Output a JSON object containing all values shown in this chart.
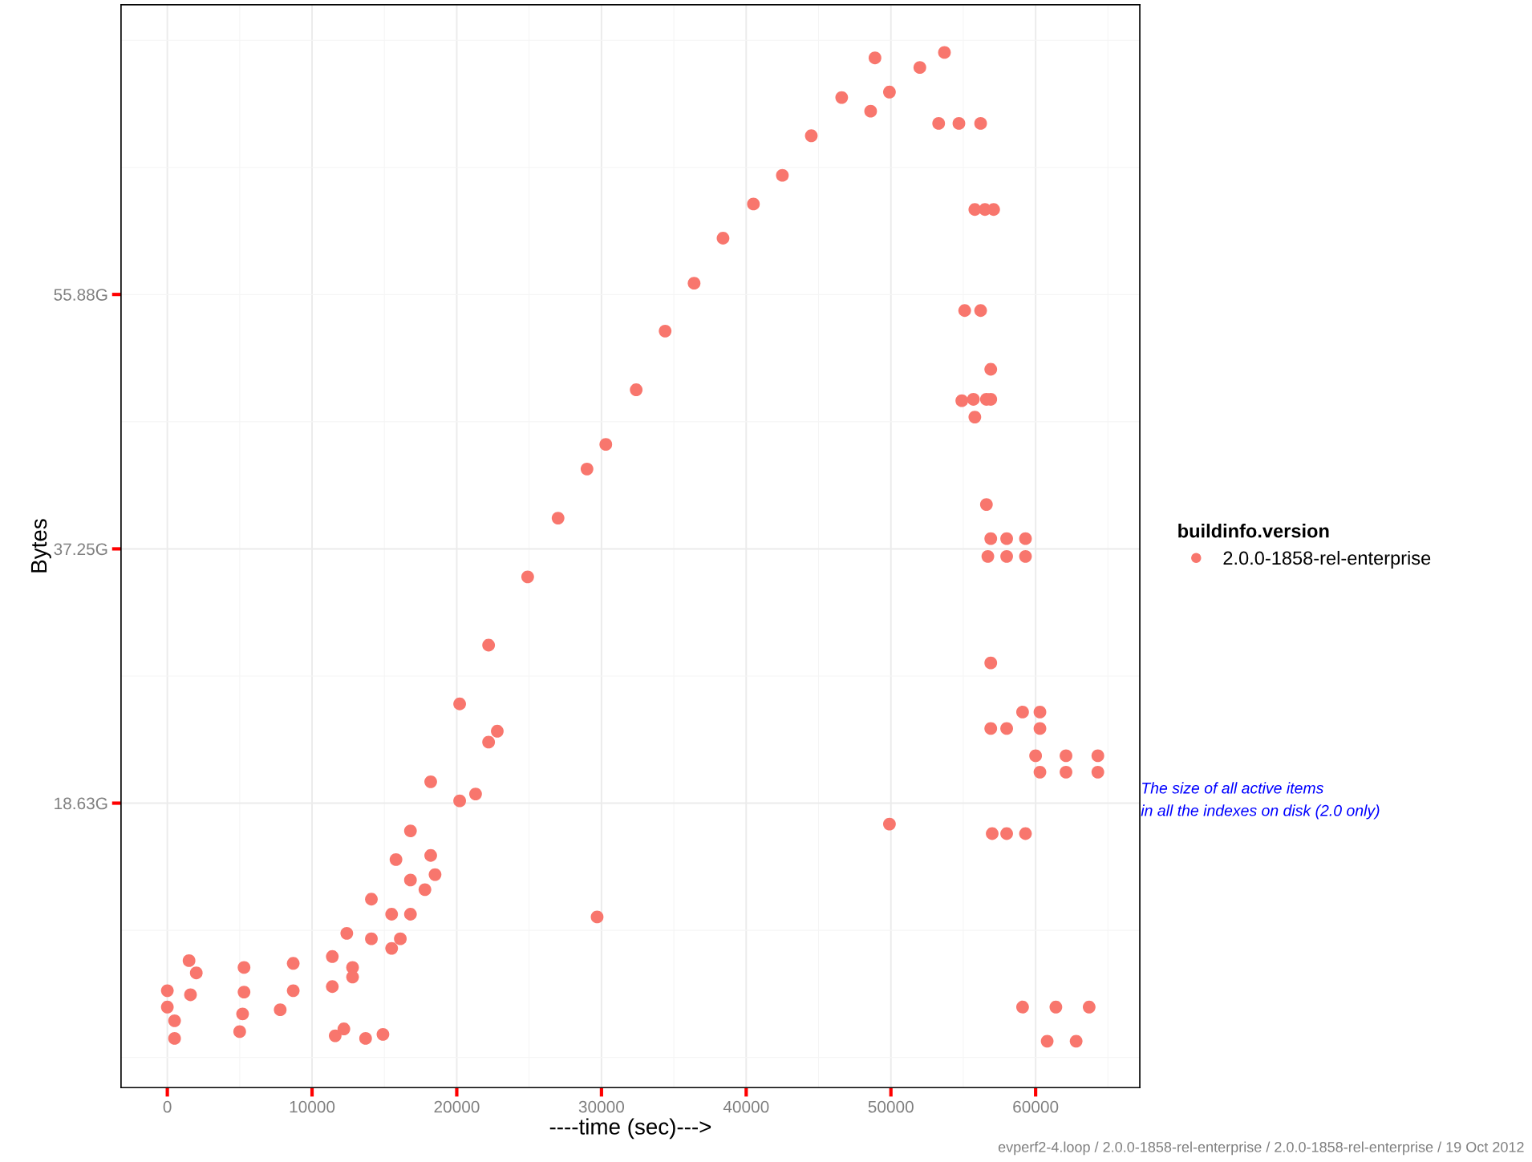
{
  "chart_data": {
    "type": "scatter",
    "xlabel": "----time (sec)--->",
    "ylabel": "Bytes",
    "legend_title": "buildinfo.version",
    "legend": "right",
    "grid": true,
    "marker": "circle",
    "xlim": [
      -3200,
      67200
    ],
    "xticks": [
      0,
      10000,
      20000,
      30000,
      40000,
      50000,
      60000
    ],
    "ylim": [
      -2.2,
      77.1
    ],
    "yticks": [
      {
        "value": 18.63,
        "label": "18.63G"
      },
      {
        "value": 37.25,
        "label": "37.25G"
      },
      {
        "value": 55.88,
        "label": "55.88G"
      }
    ],
    "series": [
      {
        "name": "2.0.0-1858-rel-enterprise",
        "color": "#f8766d",
        "x": [
          0,
          1500,
          2000,
          5300,
          8700,
          11400,
          12400,
          14100,
          15800,
          16800,
          18200,
          20200,
          22200,
          24900,
          27000,
          29000,
          30300,
          32400,
          34400,
          36400,
          38400,
          40500,
          42500,
          44500,
          46600,
          48900,
          48600,
          49900,
          52000,
          53700,
          0,
          1600,
          5300,
          8700,
          11400,
          12800,
          14100,
          15500,
          16800,
          18200,
          20200,
          22200,
          22800,
          12800,
          15500,
          16100,
          16800,
          17800,
          18500,
          500,
          500,
          5000,
          5200,
          7800,
          11600,
          12200,
          13700,
          14900,
          21300,
          29700,
          49900,
          53300,
          54700,
          56200,
          55800,
          56500,
          57100,
          55100,
          56200,
          56900,
          54900,
          55700,
          56600,
          56900,
          55800,
          56600,
          56900,
          58000,
          59300,
          56700,
          58000,
          59300,
          56900,
          59100,
          60300,
          56900,
          58000,
          60300,
          60000,
          62100,
          64300,
          60300,
          62100,
          64300,
          57000,
          58000,
          59300,
          59100,
          61400,
          63700,
          60800,
          62800
        ],
        "values": [
          4.9,
          7.1,
          6.2,
          6.6,
          6.9,
          7.4,
          9.1,
          11.6,
          14.5,
          16.6,
          20.2,
          25.9,
          30.2,
          35.2,
          39.5,
          43.1,
          44.9,
          48.9,
          53.2,
          56.7,
          60.0,
          62.5,
          64.6,
          67.5,
          70.3,
          73.2,
          69.3,
          70.7,
          72.5,
          73.6,
          3.7,
          4.6,
          4.8,
          4.9,
          5.2,
          6.6,
          8.7,
          10.5,
          13.0,
          14.8,
          18.8,
          23.1,
          23.9,
          5.9,
          8.0,
          8.7,
          10.5,
          12.3,
          13.4,
          2.7,
          1.4,
          1.9,
          3.2,
          3.5,
          1.6,
          2.1,
          1.4,
          1.7,
          19.3,
          10.3,
          17.1,
          68.4,
          68.4,
          68.4,
          62.1,
          62.1,
          62.1,
          54.7,
          54.7,
          50.4,
          48.1,
          48.2,
          48.2,
          48.2,
          46.9,
          40.5,
          38.0,
          38.0,
          38.0,
          36.7,
          36.7,
          36.7,
          28.9,
          25.3,
          25.3,
          24.1,
          24.1,
          24.1,
          22.1,
          22.1,
          22.1,
          20.9,
          20.9,
          20.9,
          16.4,
          16.4,
          16.4,
          3.7,
          3.7,
          3.7,
          1.2,
          1.2
        ]
      }
    ],
    "annotations": [
      "The size of all active items\nin all the indexes on disk (2.0 only)",
      "evperf2-4.loop / 2.0.0-1858-rel-enterprise / 2.0.0-1858-rel-enterprise / 19 Oct 2012"
    ]
  }
}
